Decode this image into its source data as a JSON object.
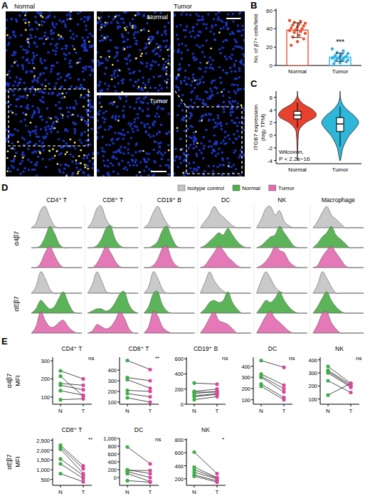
{
  "panel_a": {
    "panel": "A",
    "images": [
      {
        "label": "Normal"
      },
      {
        "label": "Normal"
      },
      {
        "label": "Tumor"
      },
      {
        "label": "Tumor"
      }
    ]
  },
  "chart_data": [
    {
      "panel": "B",
      "type": "bar",
      "categories": [
        "Normal",
        "Tumor"
      ],
      "values": [
        38.5,
        9
      ],
      "errors": [
        8,
        4.5
      ],
      "points": [
        [
          49,
          48,
          47,
          46,
          45,
          44,
          43,
          42,
          41,
          40,
          39,
          38,
          37,
          36,
          35,
          33,
          31,
          29,
          26,
          22
        ],
        [
          18,
          16,
          14,
          13,
          12,
          11,
          10,
          10,
          9,
          9,
          8,
          8,
          7,
          7,
          6,
          6,
          5,
          4,
          3,
          2
        ]
      ],
      "colors": [
        "#e9502f",
        "#2eb3e6"
      ],
      "ylabel": "No. of β7+ cells/field",
      "ylim": [
        0,
        62
      ],
      "yticks": [
        0,
        20,
        40,
        60
      ],
      "annotation": "***"
    },
    {
      "panel": "C",
      "type": "violin",
      "categories": [
        "Normal",
        "Tumor"
      ],
      "colors": [
        "#e8422f",
        "#2fb7da"
      ],
      "ylabel": "ITGB7 expression (log₂ TPM)",
      "ylim": [
        -4.5,
        7
      ],
      "yticks": [
        -4,
        -2,
        0,
        2,
        4,
        6
      ],
      "density_y": [
        -4,
        -3,
        -2,
        -1,
        0,
        1,
        2,
        3,
        4,
        5,
        6,
        7
      ],
      "density": [
        [
          0,
          0,
          0.02,
          0.03,
          0.05,
          0.12,
          0.45,
          1,
          0.85,
          0.3,
          0.04,
          0
        ],
        [
          0.02,
          0.08,
          0.15,
          0.3,
          0.5,
          0.8,
          1,
          0.8,
          0.4,
          0.12,
          0.02,
          0
        ]
      ],
      "median": [
        3.2,
        1.8
      ],
      "q1": [
        2.6,
        0.6
      ],
      "q3": [
        3.8,
        2.8
      ],
      "whisker_low": [
        1.2,
        -1.8
      ],
      "whisker_high": [
        5.2,
        4.5
      ],
      "annotation": [
        "Wilcoxon,",
        "P < 2.2e−16"
      ]
    },
    {
      "panel": "D",
      "type": "density",
      "columns": [
        "CD4⁺ T",
        "CD8⁺ T",
        "CD19⁺ B",
        "DC",
        "NK",
        "Macrophage"
      ],
      "rows": [
        "α4β7",
        "αEβ7"
      ],
      "series": [
        {
          "name": "Isotype control",
          "color": "#c4c4c4"
        },
        {
          "name": "Normal",
          "color": "#4daf4a"
        },
        {
          "name": "Tumor",
          "color": "#e36cb0"
        }
      ],
      "legend": "top",
      "tick_labels": false,
      "data": [
        [
          [
            [
              0,
              0.2,
              0.8,
              1,
              0.5,
              0.1,
              0,
              0,
              0,
              0,
              0,
              0
            ],
            [
              0,
              0,
              0.1,
              0.5,
              1,
              0.7,
              0.2,
              0,
              0,
              0,
              0,
              0
            ],
            [
              0,
              0,
              0.2,
              0.7,
              1,
              0.6,
              0.2,
              0,
              0,
              0,
              0,
              0
            ]
          ],
          [
            [
              0,
              0.3,
              0.9,
              1,
              0.4,
              0.1,
              0,
              0,
              0,
              0,
              0,
              0
            ],
            [
              0,
              0,
              0.1,
              0.4,
              0.9,
              1,
              0.4,
              0.1,
              0,
              0,
              0,
              0
            ],
            [
              0,
              0,
              0.2,
              0.6,
              1,
              0.7,
              0.3,
              0.05,
              0,
              0,
              0,
              0
            ]
          ],
          [
            [
              0,
              0.2,
              0.7,
              1,
              0.6,
              0.2,
              0,
              0,
              0,
              0,
              0,
              0
            ],
            [
              0,
              0,
              0.1,
              0.3,
              0.8,
              1,
              0.5,
              0.1,
              0,
              0,
              0,
              0
            ],
            [
              0,
              0,
              0.1,
              0.4,
              0.9,
              1,
              0.4,
              0.1,
              0,
              0,
              0,
              0
            ]
          ],
          [
            [
              0,
              0.3,
              0.6,
              1,
              0.7,
              0.5,
              0.3,
              0.1,
              0,
              0,
              0,
              0
            ],
            [
              0,
              0.1,
              0.3,
              0.5,
              0.7,
              0.6,
              0.9,
              0.6,
              0.3,
              0.1,
              0,
              0
            ],
            [
              0,
              0.1,
              0.4,
              0.7,
              1,
              0.8,
              0.5,
              0.3,
              0.1,
              0,
              0,
              0
            ]
          ],
          [
            [
              0,
              0.4,
              0.9,
              1,
              0.6,
              0.8,
              0.3,
              0.1,
              0,
              0,
              0,
              0
            ],
            [
              0,
              0.1,
              0.3,
              0.5,
              0.6,
              1,
              0.7,
              0.4,
              0.1,
              0,
              0,
              0
            ],
            [
              0,
              0.1,
              0.3,
              0.6,
              1,
              0.8,
              0.7,
              0.3,
              0.1,
              0,
              0,
              0
            ]
          ],
          [
            [
              0,
              0.3,
              0.7,
              1,
              0.6,
              0.4,
              0.2,
              0,
              0,
              0,
              0,
              0
            ],
            [
              0,
              0.2,
              0.5,
              0.7,
              1,
              0.6,
              0.4,
              0.2,
              0,
              0,
              0,
              0
            ],
            [
              0,
              0.1,
              0.5,
              0.8,
              1,
              0.7,
              0.4,
              0.1,
              0,
              0,
              0,
              0
            ]
          ]
        ],
        [
          [
            [
              0,
              0.3,
              1,
              0.7,
              0.2,
              0,
              0,
              0,
              0,
              0,
              0,
              0
            ],
            [
              0,
              0.2,
              0.6,
              0.4,
              0.2,
              0.3,
              0.7,
              1,
              0.5,
              0.1,
              0,
              0
            ],
            [
              0,
              0.3,
              1,
              0.6,
              0.3,
              0.3,
              0.5,
              0.6,
              0.3,
              0.1,
              0,
              0
            ]
          ],
          [
            [
              0,
              0.4,
              1,
              0.6,
              0.1,
              0,
              0,
              0,
              0,
              0,
              0,
              0
            ],
            [
              0,
              0.1,
              0.2,
              0.2,
              0.1,
              0.2,
              0.5,
              0.9,
              1,
              0.4,
              0.1,
              0
            ],
            [
              0,
              0.1,
              0.4,
              0.3,
              0.2,
              0.3,
              0.6,
              1,
              0.7,
              0.2,
              0,
              0
            ]
          ],
          [
            [
              0,
              0.3,
              1,
              0.7,
              0.2,
              0,
              0,
              0,
              0,
              0,
              0,
              0
            ],
            [
              0,
              0.3,
              0.9,
              1,
              0.4,
              0.1,
              0,
              0,
              0,
              0,
              0,
              0
            ],
            [
              0,
              0.3,
              1,
              0.8,
              0.3,
              0.1,
              0,
              0,
              0,
              0,
              0,
              0
            ]
          ],
          [
            [
              0,
              0.5,
              1,
              0.6,
              0.3,
              0.1,
              0,
              0,
              0,
              0,
              0,
              0
            ],
            [
              0,
              0.2,
              0.5,
              0.6,
              0.5,
              0.6,
              1,
              0.5,
              0.2,
              0,
              0,
              0
            ],
            [
              0,
              0.3,
              0.7,
              1,
              0.6,
              0.5,
              0.4,
              0.2,
              0,
              0,
              0,
              0
            ]
          ],
          [
            [
              0,
              0.6,
              1,
              0.7,
              0.3,
              0.1,
              0,
              0,
              0,
              0,
              0,
              0
            ],
            [
              0,
              0.3,
              0.6,
              0.5,
              0.7,
              1,
              0.6,
              0.3,
              0.1,
              0,
              0,
              0
            ],
            [
              0,
              0.4,
              0.8,
              1,
              0.7,
              0.5,
              0.3,
              0.1,
              0,
              0,
              0,
              0
            ]
          ],
          [
            [
              0,
              0.4,
              1,
              0.7,
              0.3,
              0,
              0,
              0,
              0,
              0,
              0,
              0
            ],
            [
              0,
              0.3,
              0.7,
              1,
              0.6,
              0.3,
              0.1,
              0,
              0,
              0,
              0,
              0
            ],
            [
              0,
              0.4,
              0.9,
              1,
              0.5,
              0.2,
              0,
              0,
              0,
              0,
              0,
              0
            ]
          ]
        ]
      ]
    },
    {
      "panel": "E",
      "type": "paired",
      "categories": [
        "N",
        "T"
      ],
      "colors": [
        "#3fae49",
        "#d6489a"
      ],
      "rows": [
        {
          "ylabel": [
            "α4β7",
            "MFI"
          ],
          "panels": [
            {
              "title": "CD4⁺ T",
              "annotation": "ns",
              "ylim": [
                60,
                320
              ],
              "yticks": [
                100,
                200,
                300
              ],
              "normal": [
                245,
                215,
                175,
                165,
                135,
                85
              ],
              "tumor": [
                200,
                105,
                165,
                140,
                110,
                90
              ]
            },
            {
              "title": "CD8⁺ T",
              "annotation": "**",
              "ylim": [
                80,
                520
              ],
              "yticks": [
                100,
                200,
                300,
                400
              ],
              "normal": [
                490,
                330,
                310,
                210,
                180,
                140
              ],
              "tumor": [
                405,
                300,
                230,
                200,
                150,
                100
              ]
            },
            {
              "title": "CD19⁺ B",
              "annotation": "ns",
              "ylim": [
                0,
                620
              ],
              "yticks": [
                0,
                200,
                400,
                600
              ],
              "normal": [
                280,
                170,
                160,
                140,
                110,
                100,
                60
              ],
              "tumor": [
                265,
                200,
                160,
                170,
                140,
                130,
                100
              ]
            },
            {
              "title": "DC",
              "annotation": "ns",
              "ylim": [
                60,
                480
              ],
              "yticks": [
                100,
                200,
                300,
                400
              ],
              "normal": [
                450,
                330,
                310,
                300,
                240,
                220
              ],
              "tumor": [
                390,
                230,
                200,
                170,
                120,
                100
              ]
            },
            {
              "title": "NK",
              "annotation": "ns",
              "ylim": [
                60,
                420
              ],
              "yticks": [
                100,
                200,
                300,
                400
              ],
              "normal": [
                350,
                320,
                310,
                300,
                240,
                130
              ],
              "tumor": [
                220,
                210,
                200,
                190,
                150,
                220
              ]
            }
          ]
        },
        {
          "ylabel": [
            "αEβ7",
            "MFI"
          ],
          "panels": [
            {
              "title": "CD8⁺ T",
              "annotation": "**",
              "ylim": [
                200,
                2600
              ],
              "yticks": [
                500,
                {
                  "value": 1000,
                  "label": "1,000"
                },
                {
                  "value": 1500,
                  "label": "1,500"
                },
                {
                  "value": 2000,
                  "label": "2,000"
                },
                {
                  "value": 2500,
                  "label": "2,500"
                }
              ],
              "normal": [
                2250,
                2150,
                2050,
                1550,
                1300,
                800
              ],
              "tumor": [
                1200,
                1050,
                800,
                700,
                550,
                380
              ]
            },
            {
              "title": "DC",
              "annotation": "ns",
              "ylim": [
                -200,
                1000
              ],
              "yticks": [
                0,
                200,
                400,
                600,
                800,
                {
                  "value": 1000,
                  "label": "1,000"
                }
              ],
              "normal": [
                780,
                200,
                180,
                150,
                100,
                -80
              ],
              "tumor": [
                350,
                100,
                180,
                0,
                -100,
                -120
              ]
            },
            {
              "title": "NK",
              "annotation": "*",
              "ylim": [
                100,
                820
              ],
              "yticks": [
                200,
                400,
                600,
                800
              ],
              "normal": [
                610,
                380,
                340,
                300,
                260,
                240
              ],
              "tumor": [
                280,
                220,
                210,
                200,
                170,
                150
              ]
            }
          ]
        }
      ]
    }
  ]
}
